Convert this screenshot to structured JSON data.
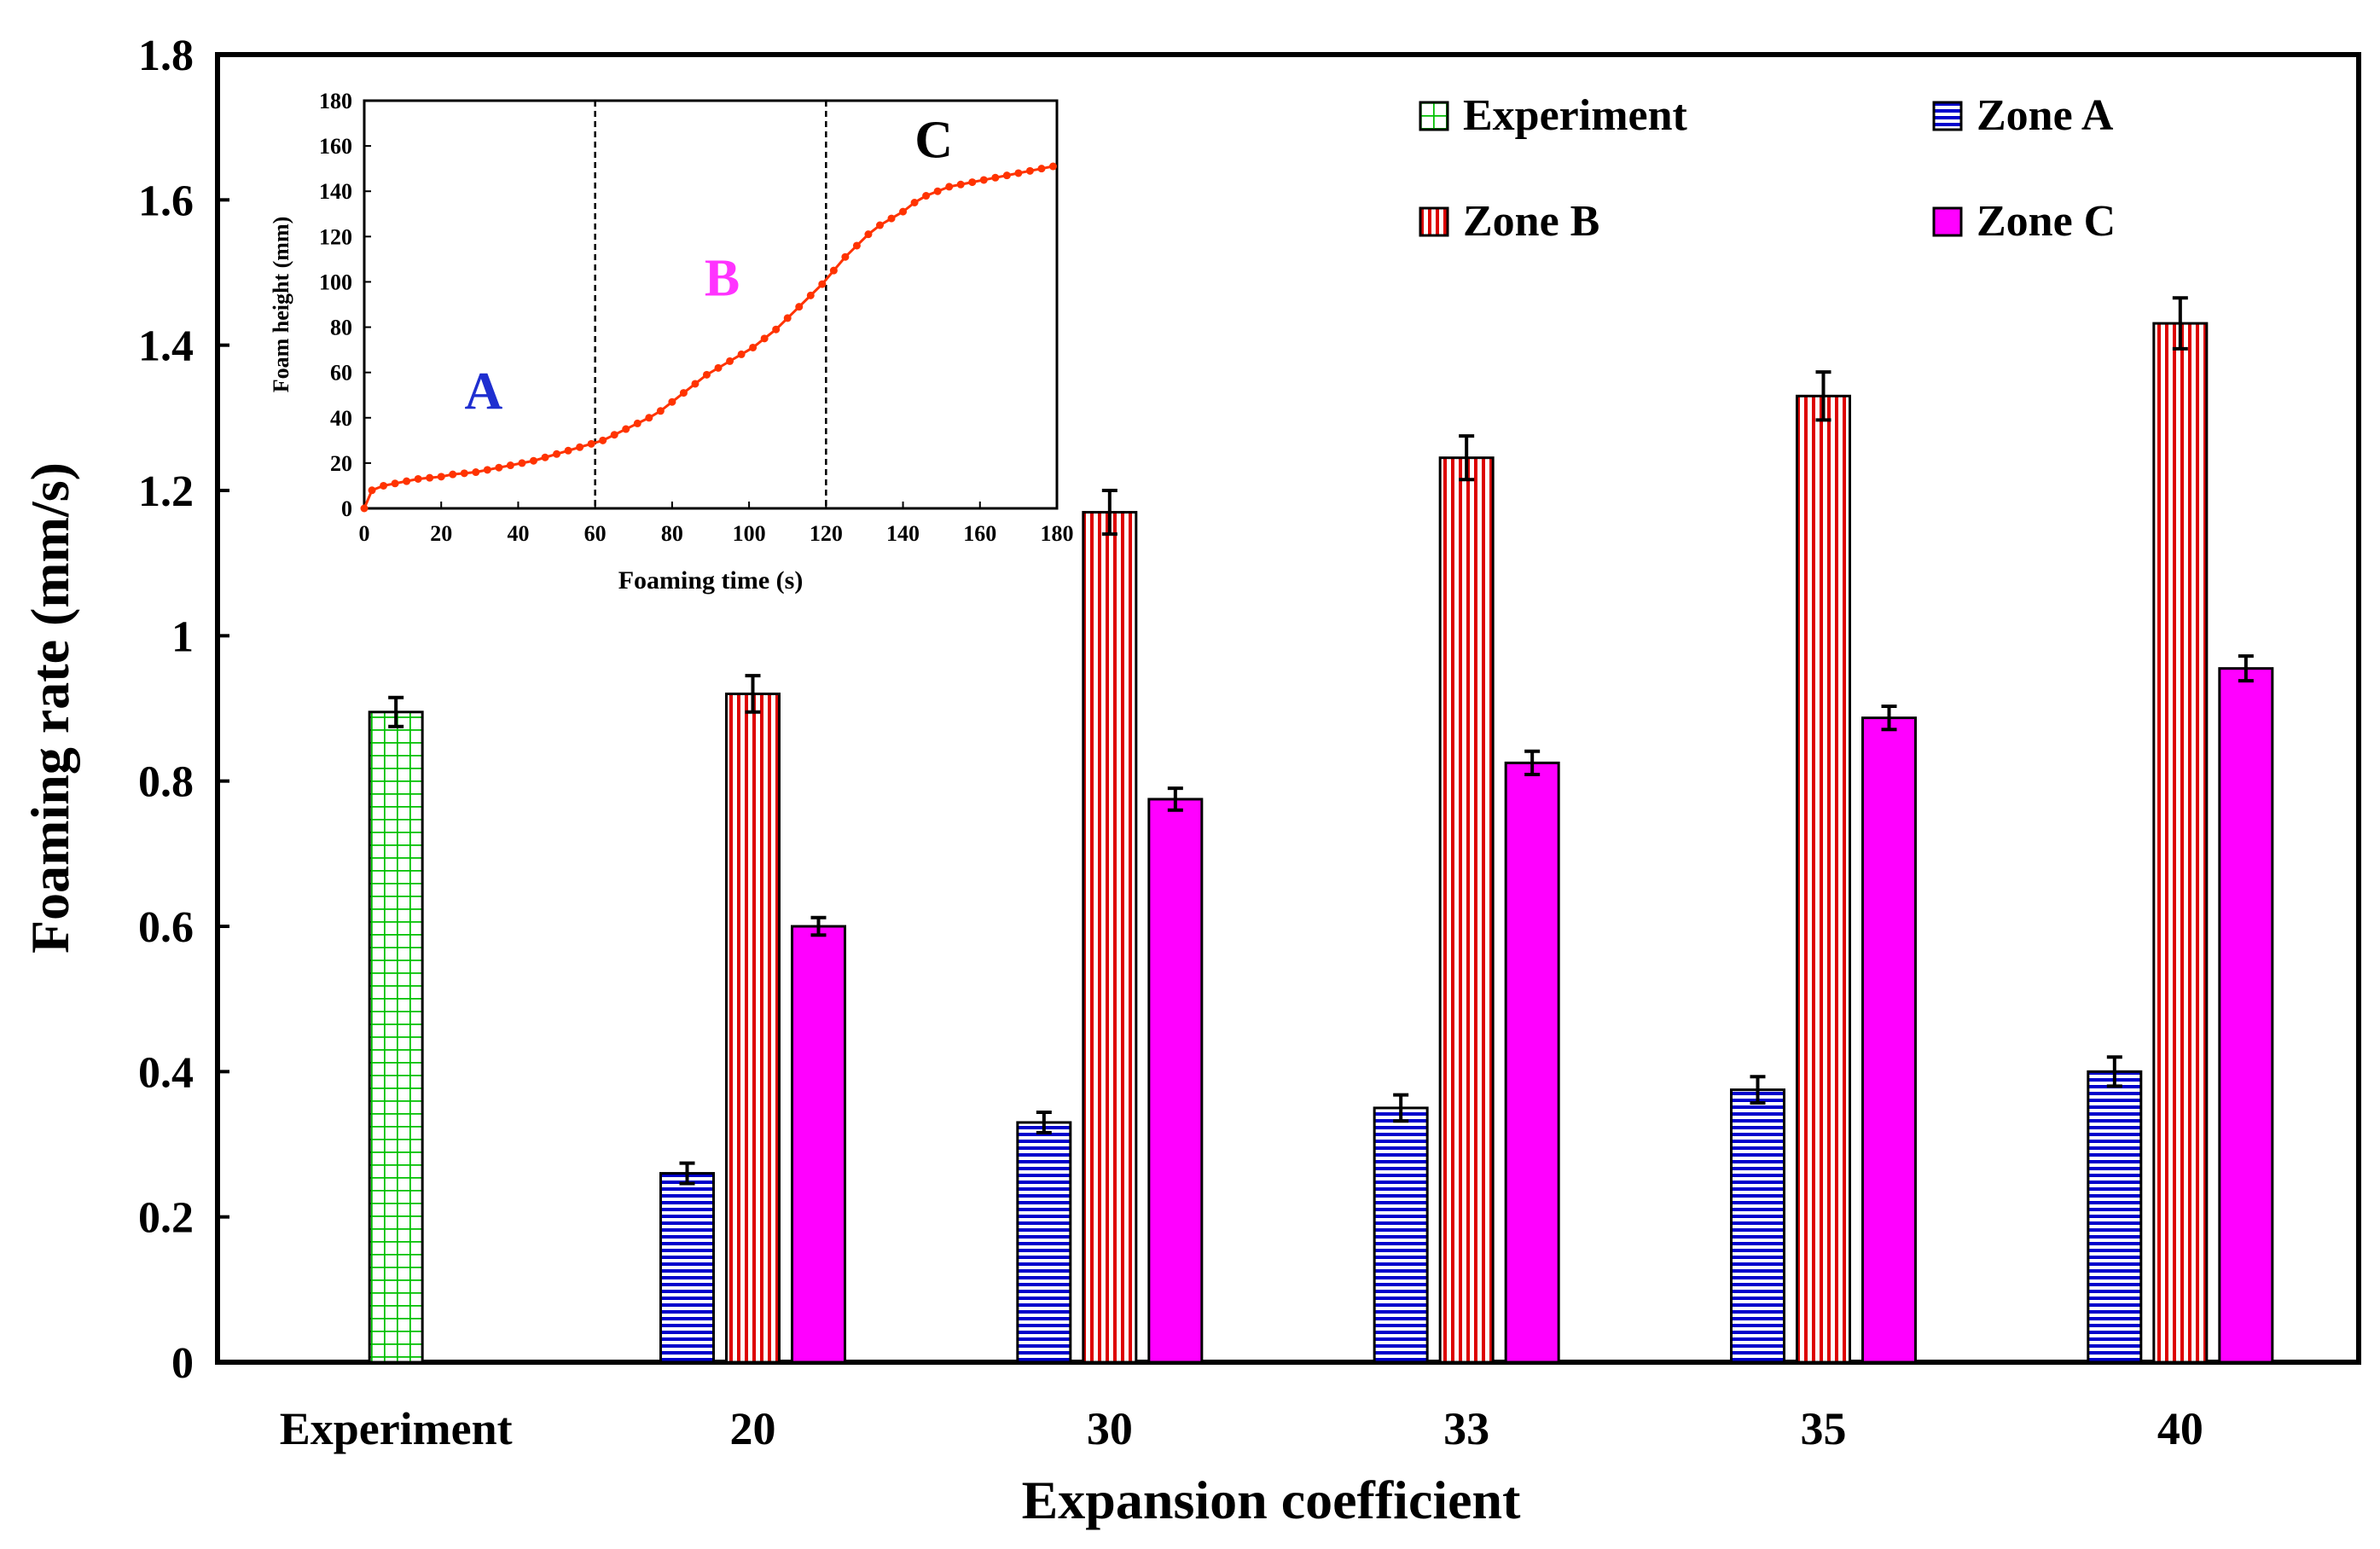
{
  "chart_data": [
    {
      "type": "bar",
      "xlabel": "Expansion coefficient",
      "ylabel": "Foaming rate (mm/s)",
      "ylim": [
        0,
        1.8
      ],
      "yticks": [
        "0",
        "0.2",
        "0.4",
        "0.6",
        "0.8",
        "1",
        "1.2",
        "1.4",
        "1.6",
        "1.8"
      ],
      "ytick_values": [
        0,
        0.2,
        0.4,
        0.6,
        0.8,
        1.0,
        1.2,
        1.4,
        1.6,
        1.8
      ],
      "categories": [
        "Experiment",
        "20",
        "30",
        "33",
        "35",
        "40"
      ],
      "legend_position": "top-right",
      "grid": false,
      "series": [
        {
          "name": "Experiment",
          "pattern": "grid",
          "color": "#00c000",
          "values": [
            0.895,
            null,
            null,
            null,
            null,
            null
          ],
          "errors": [
            0.02,
            null,
            null,
            null,
            null,
            null
          ]
        },
        {
          "name": "Zone A",
          "pattern": "horizontal-lines",
          "color": "#0000cc",
          "values": [
            null,
            0.26,
            0.33,
            0.35,
            0.375,
            0.4
          ],
          "errors": [
            null,
            0.014,
            0.014,
            0.018,
            0.018,
            0.02
          ]
        },
        {
          "name": "Zone B",
          "pattern": "vertical-lines",
          "color": "#dd0000",
          "values": [
            null,
            0.92,
            1.17,
            1.245,
            1.33,
            1.43
          ],
          "errors": [
            null,
            0.025,
            0.03,
            0.03,
            0.033,
            0.035
          ]
        },
        {
          "name": "Zone C",
          "pattern": "solid",
          "color": "#ff00ff",
          "values": [
            null,
            0.6,
            0.775,
            0.825,
            0.887,
            0.955
          ],
          "errors": [
            null,
            0.012,
            0.015,
            0.016,
            0.016,
            0.017
          ]
        }
      ]
    },
    {
      "type": "line",
      "inset": true,
      "xlabel": "Foaming time (s)",
      "ylabel": "Foam height (mm)",
      "xlim": [
        0,
        180
      ],
      "ylim": [
        0,
        180
      ],
      "xticks": [
        "0",
        "20",
        "40",
        "60",
        "80",
        "100",
        "120",
        "140",
        "160",
        "180"
      ],
      "xtick_values": [
        0,
        20,
        40,
        60,
        80,
        100,
        120,
        140,
        160,
        180
      ],
      "yticks": [
        "0",
        "20",
        "40",
        "60",
        "80",
        "100",
        "120",
        "140",
        "160",
        "180"
      ],
      "ytick_values": [
        0,
        20,
        40,
        60,
        80,
        100,
        120,
        140,
        160,
        180
      ],
      "color": "#ff3300",
      "vlines": [
        60,
        120
      ],
      "zones": [
        {
          "label": "A",
          "color": "#1f2fd0",
          "x": 31,
          "y": 44
        },
        {
          "label": "B",
          "color": "#ff33ff",
          "x": 93,
          "y": 94
        },
        {
          "label": "C",
          "color": "#000000",
          "x": 148,
          "y": 155
        }
      ],
      "x": [
        0,
        2,
        5,
        8,
        11,
        14,
        17,
        20,
        23,
        26,
        29,
        32,
        35,
        38,
        41,
        44,
        47,
        50,
        53,
        56,
        59,
        62,
        65,
        68,
        71,
        74,
        77,
        80,
        83,
        86,
        89,
        92,
        95,
        98,
        101,
        104,
        107,
        110,
        113,
        116,
        119,
        122,
        125,
        128,
        131,
        134,
        137,
        140,
        143,
        146,
        149,
        152,
        155,
        158,
        161,
        164,
        167,
        170,
        173,
        176,
        179
      ],
      "y": [
        0,
        8,
        10,
        11,
        12,
        13,
        13.5,
        14,
        15,
        15.5,
        16,
        17,
        18,
        19,
        20,
        21,
        22.5,
        24,
        25.5,
        27,
        28.5,
        30,
        32.5,
        35,
        37.5,
        40,
        43,
        47,
        51,
        55,
        59,
        62,
        65,
        68,
        71,
        75,
        79,
        84,
        89,
        94,
        99,
        105,
        111,
        116,
        121,
        125,
        128,
        131,
        135,
        138,
        140,
        142,
        143,
        144,
        145,
        146,
        147,
        148,
        149,
        150,
        151
      ]
    }
  ]
}
